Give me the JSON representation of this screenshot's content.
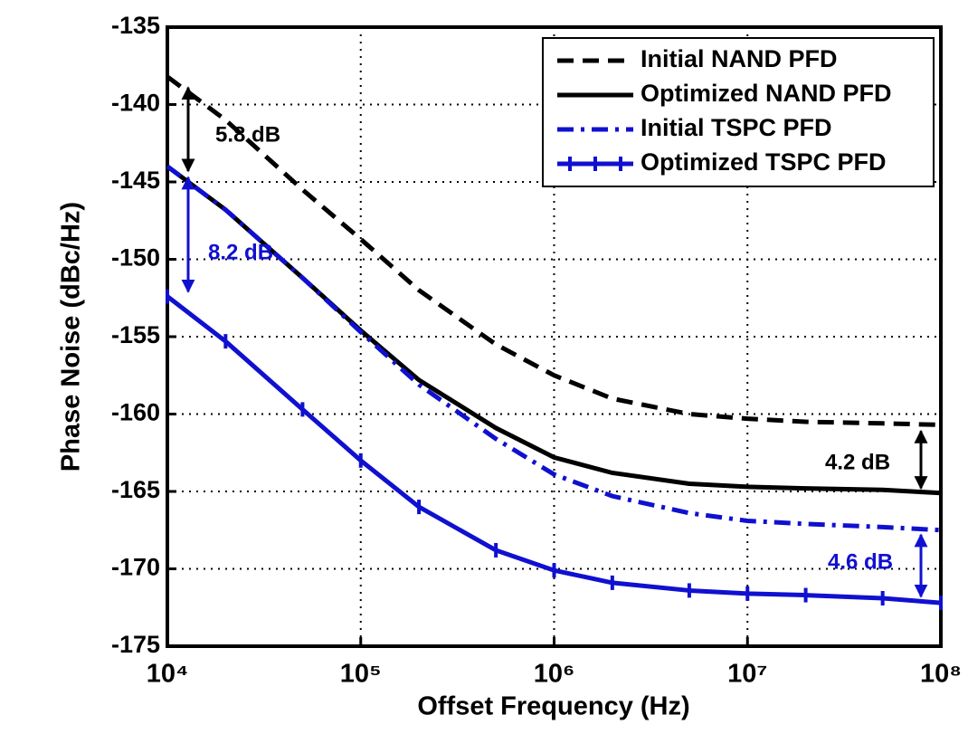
{
  "chart_data": {
    "type": "line",
    "xlabel": "Offset Frequency (Hz)",
    "ylabel": "Phase Noise (dBc/Hz)",
    "log_x": true,
    "grid": true,
    "legend": "upper right",
    "x": [
      10000,
      20000,
      50000,
      100000,
      200000,
      500000,
      1000000,
      2000000,
      5000000,
      10000000,
      20000000,
      50000000,
      100000000
    ],
    "series": [
      {
        "name": "Initial NAND PFD",
        "color": "#000000",
        "dash": "dashed",
        "values": [
          -138.2,
          -141,
          -145.5,
          -148.7,
          -152,
          -155.5,
          -157.5,
          -159,
          -160,
          -160.3,
          -160.5,
          -160.6,
          -160.7
        ]
      },
      {
        "name": "Optimized NAND PFD",
        "color": "#000000",
        "dash": "solid",
        "values": [
          -144,
          -146.8,
          -151.2,
          -154.6,
          -157.8,
          -160.9,
          -162.8,
          -163.8,
          -164.5,
          -164.7,
          -164.8,
          -164.9,
          -165.1
        ]
      },
      {
        "name": "Initial TSPC PFD",
        "color": "#1010d0",
        "dash": "dashdot",
        "values": [
          -144,
          -146.8,
          -151.2,
          -154.7,
          -158.1,
          -161.6,
          -163.9,
          -165.3,
          -166.4,
          -166.9,
          -167.1,
          -167.3,
          -167.5
        ]
      },
      {
        "name": "Optimized TSPC PFD",
        "color": "#1010d0",
        "dash": "solid",
        "marker": "|",
        "values": [
          -152.4,
          -155.3,
          -159.7,
          -163,
          -166,
          -168.8,
          -170.1,
          -170.9,
          -171.4,
          -171.6,
          -171.7,
          -171.9,
          -172.2
        ]
      }
    ],
    "xlim": [
      10000,
      100000000
    ],
    "xticks": [
      {
        "value": 10000,
        "label": "10⁴"
      },
      {
        "value": 100000,
        "label": "10⁵"
      },
      {
        "value": 1000000,
        "label": "10⁶"
      },
      {
        "value": 10000000,
        "label": "10⁷"
      },
      {
        "value": 100000000,
        "label": "10⁸"
      }
    ],
    "ylim": [
      -175,
      -135
    ],
    "yticks": [
      -175,
      -170,
      -165,
      -160,
      -155,
      -150,
      -145,
      -140,
      -135
    ],
    "annotations": [
      {
        "text": "5.8 dB",
        "color": "#000000"
      },
      {
        "text": "8.2 dB",
        "color": "#1010d0"
      },
      {
        "text": "4.2 dB",
        "color": "#000000"
      },
      {
        "text": "4.6 dB",
        "color": "#1010d0"
      }
    ]
  }
}
